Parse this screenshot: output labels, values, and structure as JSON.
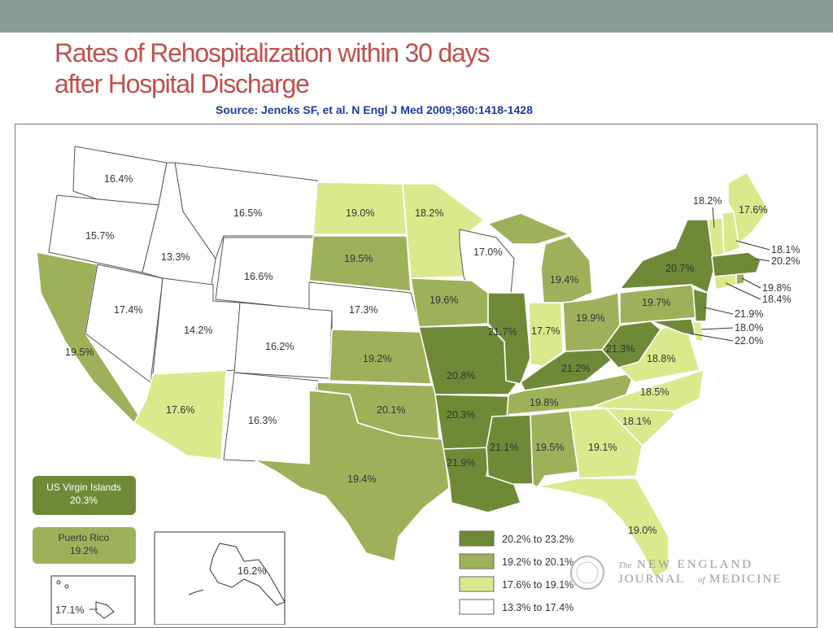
{
  "header": {
    "title_line1": "Rates of Rehospitalization within 30 days",
    "title_line2": "after Hospital Discharge",
    "source": "Source:  Jencks SF,  et al. N Engl J Med 2009;360:1418-1428"
  },
  "colors": {
    "topbar": "#8a9c98",
    "title": "#c0504d",
    "source": "#1f3aa0",
    "bin1_dark": "#6f8a37",
    "bin2_medium": "#9db15a",
    "bin3_light": "#dbe98d",
    "bin4_white": "#ffffff"
  },
  "legend": {
    "items": [
      {
        "label": "20.2% to 23.2%",
        "color": "#6f8a37"
      },
      {
        "label": "19.2% to 20.1%",
        "color": "#9db15a"
      },
      {
        "label": "17.6% to 19.1%",
        "color": "#dbe98d"
      },
      {
        "label": "13.3% to 17.4%",
        "color": "#ffffff"
      }
    ]
  },
  "territories": {
    "virgin_islands": {
      "name": "US Virgin Islands",
      "value": "20.3%"
    },
    "puerto_rico": {
      "name": "Puerto Rico",
      "value": "19.2%"
    }
  },
  "states": {
    "WA": "16.4%",
    "OR": "15.7%",
    "CA": "19.5%",
    "ID": "13.3%",
    "NV": "17.4%",
    "MT": "16.5%",
    "WY": "16.6%",
    "UT": "14.2%",
    "AZ": "17.6%",
    "CO": "16.2%",
    "NM": "16.3%",
    "ND": "19.0%",
    "SD": "19.5%",
    "NE": "17.3%",
    "KS": "19.2%",
    "OK": "20.1%",
    "TX": "19.4%",
    "MN": "18.2%",
    "IA": "19.6%",
    "MO": "20.8%",
    "AR": "20.3%",
    "LA": "21.9%",
    "WI": "17.0%",
    "IL": "21.7%",
    "MI": "19.4%",
    "IN": "17.7%",
    "OH": "19.9%",
    "KY": "21.2%",
    "TN": "19.8%",
    "MS": "21.1%",
    "AL": "19.5%",
    "GA": "19.1%",
    "FL": "19.0%",
    "SC": "18.1%",
    "NC": "18.5%",
    "VA": "18.8%",
    "WV": "21.3%",
    "PA": "19.7%",
    "NY": "20.7%",
    "ME": "17.6%",
    "VT": "18.2%",
    "NH": "18.1%",
    "MA": "20.2%",
    "RI": "19.8%",
    "CT": "18.4%",
    "NJ": "21.9%",
    "DE": "18.0%",
    "MD": "22.0%",
    "AK": "16.2%",
    "HI": "17.1%"
  },
  "logo": {
    "prefix": "The",
    "line1": "NEW ENGLAND",
    "line2_a": "JOURNAL",
    "line2_of": "of",
    "line2_b": "MEDICINE"
  }
}
